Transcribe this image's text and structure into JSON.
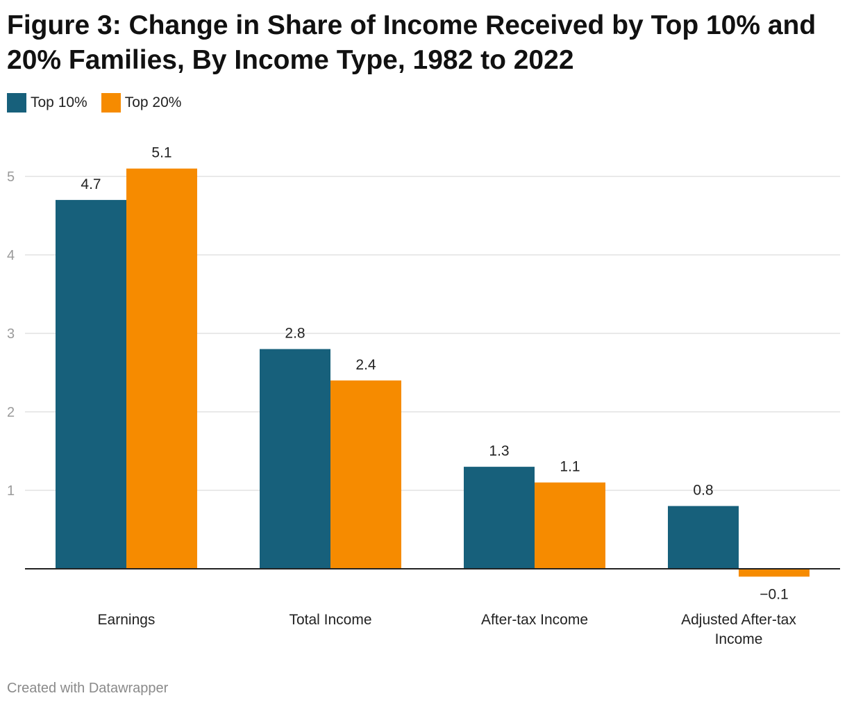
{
  "title": "Figure 3: Change in Share of Income Received by Top 10% and 20% Families, By Income Type, 1982 to 2022",
  "footer": "Created with Datawrapper",
  "colors": {
    "top10": "#17607b",
    "top20": "#f68b00",
    "grid": "#e2e2e2",
    "axis": "#222222",
    "tick": "#9a9a9a"
  },
  "legend": [
    {
      "label": "Top 10%",
      "color": "#17607b"
    },
    {
      "label": "Top 20%",
      "color": "#f68b00"
    }
  ],
  "chart_data": {
    "type": "bar",
    "title": "Figure 3: Change in Share of Income Received by Top 10% and 20% Families, By Income Type, 1982 to 2022",
    "categories": [
      [
        "Earnings"
      ],
      [
        "Total Income"
      ],
      [
        "After-tax Income"
      ],
      [
        "Adjusted After-tax",
        "Income"
      ]
    ],
    "series": [
      {
        "name": "Top 10%",
        "values": [
          4.7,
          2.8,
          1.3,
          0.8
        ],
        "labels": [
          "4.7",
          "2.8",
          "1.3",
          "0.8"
        ]
      },
      {
        "name": "Top 20%",
        "values": [
          5.1,
          2.4,
          1.1,
          -0.1
        ],
        "labels": [
          "5.1",
          "2.4",
          "1.1",
          "−0.1"
        ]
      }
    ],
    "yticks": [
      1,
      2,
      3,
      4,
      5
    ],
    "ylim": [
      -0.1,
      5.1
    ],
    "grid": true,
    "legend_position": "top-left"
  }
}
